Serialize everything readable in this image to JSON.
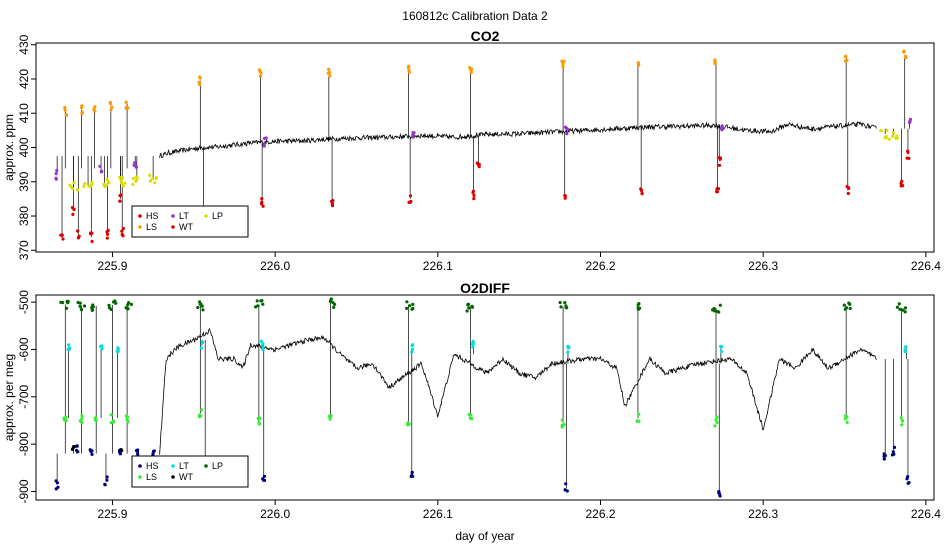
{
  "figure": {
    "title": "160812c   Calibration Data 2"
  },
  "chart_data": [
    {
      "type": "line",
      "title": "CO2",
      "xlabel": "",
      "ylabel": "approx. ppm",
      "xlim": [
        225.853,
        226.405
      ],
      "ylim": [
        369.5,
        430.5
      ],
      "xticks": [
        225.9,
        226.0,
        226.1,
        226.2,
        226.3,
        226.4
      ],
      "xtick_labels": [
        "225.9",
        "226.0",
        "226.1",
        "226.2",
        "226.3",
        "226.4"
      ],
      "yticks": [
        370,
        380,
        390,
        400,
        410,
        420,
        430
      ],
      "ytick_labels": [
        "370",
        "380",
        "390",
        "400",
        "410",
        "420",
        "430"
      ],
      "legend": {
        "position": "bottom-left",
        "entries": [
          {
            "label": "HS",
            "color": "#dd0000"
          },
          {
            "label": "LS",
            "color": "#ff9900"
          },
          {
            "label": "LT",
            "color": "#9933cc"
          },
          {
            "label": "WT",
            "color": "#dd0000"
          },
          {
            "label": "LP",
            "color": "#dddd00"
          }
        ]
      },
      "series": [
        {
          "name": "ambient",
          "color": "#000000",
          "x": [
            225.929,
            225.935,
            225.945,
            225.955,
            225.965,
            225.975,
            225.985,
            226.0,
            226.02,
            226.03,
            226.05,
            226.07,
            226.09,
            226.11,
            226.13,
            226.15,
            226.17,
            226.19,
            226.21,
            226.23,
            226.25,
            226.27,
            226.29,
            226.305,
            226.315,
            226.33,
            226.345,
            226.36,
            226.37
          ],
          "y": [
            397.5,
            398.5,
            399.3,
            400.0,
            400.2,
            400.8,
            401.3,
            401.8,
            402.0,
            402.4,
            402.8,
            403.0,
            403.5,
            403.0,
            403.8,
            404.0,
            404.5,
            405.0,
            405.5,
            406.0,
            406.2,
            406.5,
            405.0,
            404.6,
            406.8,
            405.4,
            406.2,
            406.8,
            405.5
          ]
        },
        {
          "name": "HS",
          "color": "#dd0000",
          "x": [
            225.869,
            225.879,
            225.887,
            225.897,
            225.906,
            225.956,
            225.992,
            226.035,
            226.083,
            226.122,
            226.178,
            226.225,
            226.272,
            226.352,
            226.385
          ],
          "y": [
            373.5,
            374.5,
            373.8,
            374.5,
            375.5,
            382.0,
            384.0,
            384.0,
            385.0,
            386.0,
            386.5,
            387.5,
            388.0,
            387.5,
            389.0
          ]
        },
        {
          "name": "LS",
          "color": "#ff9900",
          "x": [
            225.871,
            225.881,
            225.889,
            225.899,
            225.909,
            225.954,
            225.991,
            226.033,
            226.082,
            226.12,
            226.177,
            226.223,
            226.271,
            226.351,
            226.387
          ],
          "y": [
            410.5,
            411.0,
            411.8,
            412.2,
            412.8,
            419.5,
            421.5,
            421.5,
            422.5,
            422.5,
            424.5,
            424.5,
            425.0,
            426.5,
            427.0
          ]
        },
        {
          "name": "LT",
          "color": "#9933cc",
          "x": [
            225.866,
            225.893,
            225.914,
            225.994,
            226.085,
            226.179,
            226.275,
            226.39
          ],
          "y": [
            392.0,
            393.5,
            394.5,
            401.5,
            404.0,
            405.0,
            406.0,
            408.0
          ]
        },
        {
          "name": "WT",
          "color": "#dd0000",
          "x": [
            225.876,
            225.905,
            226.125,
            226.273,
            226.389
          ],
          "y": [
            381.5,
            385.0,
            394.5,
            396.0,
            398.0
          ]
        },
        {
          "name": "LP",
          "color": "#dddd00",
          "x": [
            225.876,
            225.885,
            225.895,
            225.905,
            225.915,
            225.925,
            226.375,
            226.38
          ],
          "y": [
            388.5,
            389.0,
            389.5,
            390.0,
            390.5,
            391.0,
            404.0,
            403.5
          ]
        }
      ]
    },
    {
      "type": "line",
      "title": "O2DIFF",
      "xlabel": "day of year",
      "ylabel": "approx. per meg",
      "xlim": [
        225.853,
        226.405
      ],
      "ylim": [
        -918,
        -485
      ],
      "xticks": [
        225.9,
        226.0,
        226.1,
        226.2,
        226.3,
        226.4
      ],
      "xtick_labels": [
        "225.9",
        "226.0",
        "226.1",
        "226.2",
        "226.3",
        "226.4"
      ],
      "yticks": [
        -900,
        -800,
        -700,
        -600,
        -500
      ],
      "ytick_labels": [
        "-900",
        "-800",
        "-700",
        "-600",
        "-500"
      ],
      "legend": {
        "position": "bottom-left",
        "entries": [
          {
            "label": "HS",
            "color": "#000080"
          },
          {
            "label": "LS",
            "color": "#33ee33"
          },
          {
            "label": "LT",
            "color": "#00dddd"
          },
          {
            "label": "WT",
            "color": "#000000"
          },
          {
            "label": "LP",
            "color": "#006600"
          }
        ]
      },
      "series": [
        {
          "name": "ambient",
          "color": "#000000",
          "x": [
            225.929,
            225.933,
            225.94,
            225.95,
            225.96,
            225.965,
            225.975,
            225.98,
            225.985,
            226.0,
            226.02,
            226.03,
            226.04,
            226.05,
            226.06,
            226.07,
            226.09,
            226.1,
            226.11,
            226.13,
            226.14,
            226.15,
            226.16,
            226.17,
            226.19,
            226.2,
            226.21,
            226.215,
            226.23,
            226.24,
            226.25,
            226.26,
            226.28,
            226.29,
            226.3,
            226.31,
            226.32,
            226.33,
            226.34,
            226.36,
            226.37
          ],
          "y": [
            -820,
            -620,
            -595,
            -580,
            -560,
            -620,
            -620,
            -640,
            -590,
            -600,
            -580,
            -575,
            -610,
            -640,
            -630,
            -680,
            -630,
            -740,
            -610,
            -650,
            -620,
            -650,
            -660,
            -630,
            -620,
            -620,
            -640,
            -720,
            -620,
            -650,
            -640,
            -630,
            -620,
            -650,
            -770,
            -620,
            -640,
            -600,
            -640,
            -600,
            -620
          ]
        },
        {
          "name": "HS",
          "color": "#000080",
          "x": [
            225.866,
            225.878,
            225.887,
            225.896,
            225.905,
            225.915,
            225.925,
            225.957,
            225.993,
            226.084,
            226.179,
            226.273,
            226.375,
            226.38,
            226.389
          ],
          "y": [
            -885,
            -812,
            -818,
            -878,
            -822,
            -815,
            -822,
            -875,
            -872,
            -868,
            -893,
            -905,
            -825,
            -815,
            -875
          ]
        },
        {
          "name": "LS",
          "color": "#33ee33",
          "x": [
            225.871,
            225.881,
            225.89,
            225.9,
            225.909,
            225.954,
            225.99,
            226.034,
            226.082,
            226.12,
            226.177,
            226.223,
            226.271,
            226.351,
            226.385
          ],
          "y": [
            -742,
            -745,
            -745,
            -745,
            -745,
            -735,
            -752,
            -740,
            -755,
            -745,
            -755,
            -745,
            -752,
            -745,
            -752
          ]
        },
        {
          "name": "LT",
          "color": "#00dddd",
          "x": [
            225.873,
            225.893,
            225.903,
            225.955,
            225.992,
            226.084,
            226.122,
            226.18,
            226.274,
            226.388
          ],
          "y": [
            -598,
            -590,
            -596,
            -592,
            -592,
            -598,
            -592,
            -602,
            -598,
            -598
          ]
        },
        {
          "name": "WT",
          "color": "#000000",
          "x": [
            225.876,
            225.905
          ],
          "y": [
            -810,
            -820
          ]
        },
        {
          "name": "LP",
          "color": "#006600",
          "x": [
            225.871,
            225.881,
            225.89,
            225.9,
            225.909,
            225.954,
            225.99,
            226.034,
            226.082,
            226.12,
            226.177,
            226.223,
            226.271,
            226.351,
            226.385
          ],
          "y": [
            -505,
            -508,
            -508,
            -506,
            -508,
            -508,
            -505,
            -502,
            -508,
            -510,
            -510,
            -510,
            -512,
            -508,
            -512
          ]
        }
      ]
    }
  ]
}
